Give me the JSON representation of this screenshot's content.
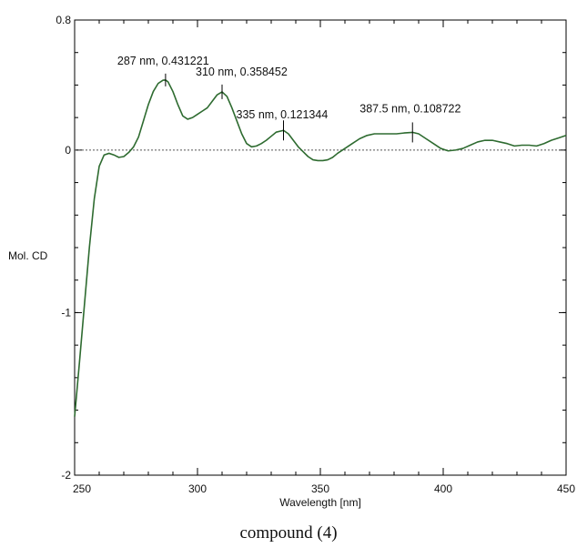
{
  "chart_data": {
    "type": "line",
    "title": "",
    "xlabel": "Wavelength [nm]",
    "ylabel": "Mol. CD",
    "xlim": [
      250,
      450
    ],
    "ylim": [
      -2,
      0.8
    ],
    "x_ticks": [
      250,
      300,
      350,
      400,
      450
    ],
    "y_ticks": [
      0.8,
      0,
      -1,
      -2
    ],
    "x_tick_labels": [
      "250",
      "300",
      "350",
      "400",
      "450"
    ],
    "y_tick_labels": [
      "0.8",
      "0",
      "-1",
      "-2"
    ],
    "x_minor_step": 10,
    "y_minor_step": 0.2,
    "grid": false,
    "zero_line": true,
    "series": [
      {
        "color": "#2e6b30",
        "points": [
          [
            250,
            -1.64
          ],
          [
            252,
            -1.3
          ],
          [
            254,
            -0.95
          ],
          [
            256,
            -0.6
          ],
          [
            258,
            -0.3
          ],
          [
            260,
            -0.1
          ],
          [
            262,
            -0.03
          ],
          [
            264,
            -0.02
          ],
          [
            266,
            -0.03
          ],
          [
            268,
            -0.045
          ],
          [
            270,
            -0.04
          ],
          [
            272,
            -0.015
          ],
          [
            274,
            0.02
          ],
          [
            276,
            0.08
          ],
          [
            278,
            0.18
          ],
          [
            280,
            0.28
          ],
          [
            282,
            0.36
          ],
          [
            284,
            0.41
          ],
          [
            286,
            0.43
          ],
          [
            287,
            0.431
          ],
          [
            288,
            0.42
          ],
          [
            290,
            0.36
          ],
          [
            292,
            0.28
          ],
          [
            294,
            0.21
          ],
          [
            296,
            0.19
          ],
          [
            298,
            0.2
          ],
          [
            300,
            0.22
          ],
          [
            302,
            0.24
          ],
          [
            304,
            0.26
          ],
          [
            306,
            0.3
          ],
          [
            308,
            0.34
          ],
          [
            310,
            0.358
          ],
          [
            312,
            0.33
          ],
          [
            314,
            0.26
          ],
          [
            316,
            0.18
          ],
          [
            318,
            0.1
          ],
          [
            320,
            0.04
          ],
          [
            322,
            0.02
          ],
          [
            324,
            0.025
          ],
          [
            326,
            0.04
          ],
          [
            328,
            0.06
          ],
          [
            330,
            0.085
          ],
          [
            332,
            0.11
          ],
          [
            335,
            0.121
          ],
          [
            337,
            0.1
          ],
          [
            339,
            0.06
          ],
          [
            341,
            0.02
          ],
          [
            343,
            -0.01
          ],
          [
            345,
            -0.04
          ],
          [
            347,
            -0.06
          ],
          [
            349,
            -0.065
          ],
          [
            351,
            -0.065
          ],
          [
            353,
            -0.06
          ],
          [
            355,
            -0.045
          ],
          [
            357,
            -0.02
          ],
          [
            360,
            0.01
          ],
          [
            363,
            0.04
          ],
          [
            366,
            0.07
          ],
          [
            369,
            0.09
          ],
          [
            372,
            0.1
          ],
          [
            375,
            0.1
          ],
          [
            378,
            0.1
          ],
          [
            381,
            0.1
          ],
          [
            384,
            0.105
          ],
          [
            387.5,
            0.109
          ],
          [
            390,
            0.1
          ],
          [
            393,
            0.07
          ],
          [
            396,
            0.04
          ],
          [
            399,
            0.01
          ],
          [
            402,
            -0.005
          ],
          [
            405,
            0.0
          ],
          [
            408,
            0.01
          ],
          [
            411,
            0.03
          ],
          [
            414,
            0.05
          ],
          [
            417,
            0.06
          ],
          [
            420,
            0.06
          ],
          [
            423,
            0.05
          ],
          [
            426,
            0.04
          ],
          [
            429,
            0.025
          ],
          [
            432,
            0.03
          ],
          [
            435,
            0.03
          ],
          [
            438,
            0.025
          ],
          [
            441,
            0.04
          ],
          [
            444,
            0.06
          ],
          [
            447,
            0.075
          ],
          [
            450,
            0.09
          ]
        ]
      }
    ],
    "annotations": [
      {
        "label": "287 nm, 0.431221",
        "x": 287,
        "y": 0.431221
      },
      {
        "label": "310 nm, 0.358452",
        "x": 310,
        "y": 0.358452
      },
      {
        "label": "335 nm, 0.121344",
        "x": 335,
        "y": 0.121344
      },
      {
        "label": "387.5 nm, 0.108722",
        "x": 387.5,
        "y": 0.108722
      }
    ]
  },
  "caption": "compound (4)"
}
